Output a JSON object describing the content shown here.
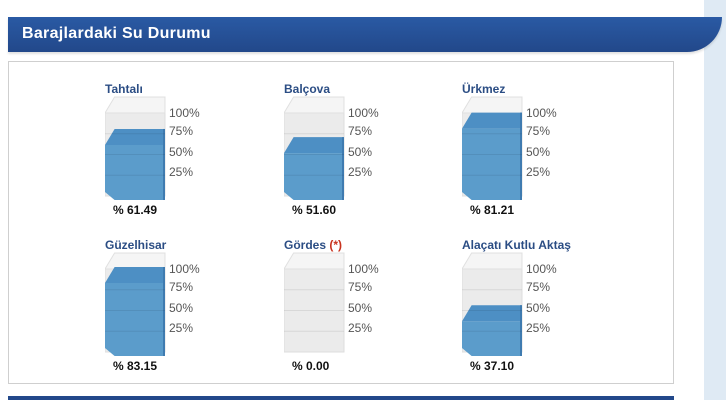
{
  "header": {
    "title": "Barajlardaki Su Durumu"
  },
  "gauge_ticks": [
    "100%",
    "75%",
    "50%",
    "25%"
  ],
  "colors": {
    "header": "#22488a",
    "water_front": "#5b9ccb",
    "water_top": "#4d8fc4",
    "water_side": "#3f7bb0",
    "name": "#2b4d84"
  },
  "dams": [
    {
      "name": "Tahtalı",
      "name_suffix": "",
      "level": 61.49,
      "label": "% 61.49"
    },
    {
      "name": "Balçova",
      "name_suffix": "",
      "level": 51.6,
      "label": "% 51.60"
    },
    {
      "name": "Ürkmez",
      "name_suffix": "",
      "level": 81.21,
      "label": "% 81.21"
    },
    {
      "name": "Güzelhisar",
      "name_suffix": "",
      "level": 83.15,
      "label": "% 83.15"
    },
    {
      "name": "Gördes",
      "name_suffix": "(*)",
      "level": 0.0,
      "label": "% 0.00"
    },
    {
      "name": "Alaçatı Kutlu Aktaş",
      "name_suffix": "",
      "level": 37.1,
      "label": "% 37.10"
    }
  ]
}
